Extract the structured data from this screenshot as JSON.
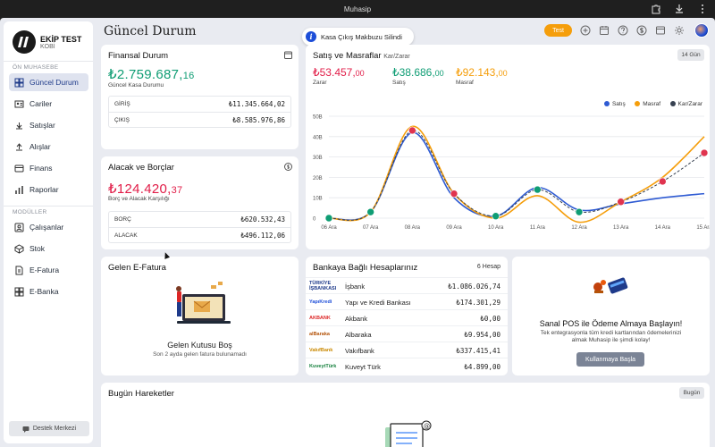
{
  "window": {
    "title": "Muhasip"
  },
  "brand": {
    "name": "EKİP TEST",
    "sub": "KOBİ"
  },
  "sidebar": {
    "section1": "ÖN MUHASEBE",
    "section2": "MODÜLLER",
    "items": [
      {
        "label": "Güncel Durum",
        "icon": "dashboard-icon"
      },
      {
        "label": "Cariler",
        "icon": "contacts-icon"
      },
      {
        "label": "Satışlar",
        "icon": "sales-icon"
      },
      {
        "label": "Alışlar",
        "icon": "purchases-icon"
      },
      {
        "label": "Finans",
        "icon": "finance-icon"
      },
      {
        "label": "Raporlar",
        "icon": "reports-icon"
      },
      {
        "label": "Çalışanlar",
        "icon": "employees-icon"
      },
      {
        "label": "Stok",
        "icon": "stock-icon"
      },
      {
        "label": "E-Fatura",
        "icon": "e-invoice-icon"
      },
      {
        "label": "E-Banka",
        "icon": "e-bank-icon"
      }
    ],
    "help": "Destek Merkezi"
  },
  "header": {
    "title": "Güncel Durum",
    "toast": "Kasa Çıkış Makbuzu Silindi",
    "badge": "Test"
  },
  "finans": {
    "title": "Finansal Durum",
    "amount_main": "₺2.759.687,",
    "amount_dec": "16",
    "label": "Güncel Kasa Durumu",
    "rows": [
      {
        "label": "GİRİŞ",
        "value": "₺11.345.664,02"
      },
      {
        "label": "ÇIKIŞ",
        "value": "₺8.585.976,86"
      }
    ]
  },
  "alacak": {
    "title": "Alacak ve Borçlar",
    "amount_main": "₺124.420,",
    "amount_dec": "37",
    "label": "Borç ve Alacak Karşılığı",
    "rows": [
      {
        "label": "BORÇ",
        "value": "₺620.532,43"
      },
      {
        "label": "ALACAK",
        "value": "₺496.112,06"
      }
    ]
  },
  "sales": {
    "title": "Satış ve Masraflar",
    "subtitle": "Kar/Zarar",
    "range_button": "14 Gün",
    "stats": [
      {
        "main": "₺53.457,",
        "dec": "00",
        "label": "Zarar",
        "color": "#e11d48"
      },
      {
        "main": "₺38.686,",
        "dec": "00",
        "label": "Satış",
        "color": "#0f9d74"
      },
      {
        "main": "₺92.143,",
        "dec": "00",
        "label": "Masraf",
        "color": "#f59e0b"
      }
    ]
  },
  "chart_data": {
    "type": "line",
    "x": [
      "06 Ara",
      "07 Ara",
      "08 Ara",
      "09 Ara",
      "10 Ara",
      "11 Ara",
      "12 Ara",
      "13 Ara",
      "14 Ara",
      "15 Ara"
    ],
    "y_ticks": [
      "0",
      "10B",
      "20B",
      "30B",
      "40B",
      "50B"
    ],
    "ylim": [
      0,
      50
    ],
    "series": [
      {
        "name": "Satış",
        "color": "#2f5bd3",
        "values": [
          0,
          3,
          42,
          10,
          1,
          15,
          4,
          7,
          10,
          12
        ]
      },
      {
        "name": "Masraf",
        "color": "#f59e0b",
        "values": [
          0,
          3,
          45,
          12,
          0,
          11,
          -2,
          8,
          20,
          40
        ]
      },
      {
        "name": "Kar/Zarar",
        "color": "#374151",
        "values": [
          0,
          3,
          43,
          12,
          1,
          14,
          3,
          8,
          18,
          32
        ]
      }
    ],
    "legend_position": "top-right"
  },
  "efatura": {
    "title": "Gelen E-Fatura",
    "empty_title": "Gelen Kutusu Boş",
    "empty_sub": "Son 2 ayda gelen fatura bulunamadı"
  },
  "banks": {
    "title": "Bankaya Bağlı Hesaplarınız",
    "count": "6 Hesap",
    "rows": [
      {
        "logo": "TÜRKİYE İŞBANKASI",
        "logo_color": "#1e3a8a",
        "name": "İşbank",
        "amount": "₺1.086.026,74"
      },
      {
        "logo": "YapıKredi",
        "logo_color": "#1d4ed8",
        "name": "Yapı ve Kredi Bankası",
        "amount": "₺174.301,29"
      },
      {
        "logo": "AKBANK",
        "logo_color": "#dc2626",
        "name": "Akbank",
        "amount": "₺0,00"
      },
      {
        "logo": "alBaraka",
        "logo_color": "#b45309",
        "name": "Albaraka",
        "amount": "₺9.954,00"
      },
      {
        "logo": "VakıfBank",
        "logo_color": "#ca8a04",
        "name": "Vakıfbank",
        "amount": "₺337.415,41"
      },
      {
        "logo": "KuveytTürk",
        "logo_color": "#15803d",
        "name": "Kuveyt Türk",
        "amount": "₺4.899,00"
      }
    ]
  },
  "pos": {
    "title": "Sanal POS ile Ödeme Almaya Başlayın!",
    "desc1": "Tek entegrasyonla tüm kredi kartlarından ödemelerinizi",
    "desc2": "almak Muhasip ile şimdi kolay!",
    "button": "Kullanmaya Başla"
  },
  "today": {
    "title": "Bugün Hareketler",
    "button": "Bugün"
  }
}
